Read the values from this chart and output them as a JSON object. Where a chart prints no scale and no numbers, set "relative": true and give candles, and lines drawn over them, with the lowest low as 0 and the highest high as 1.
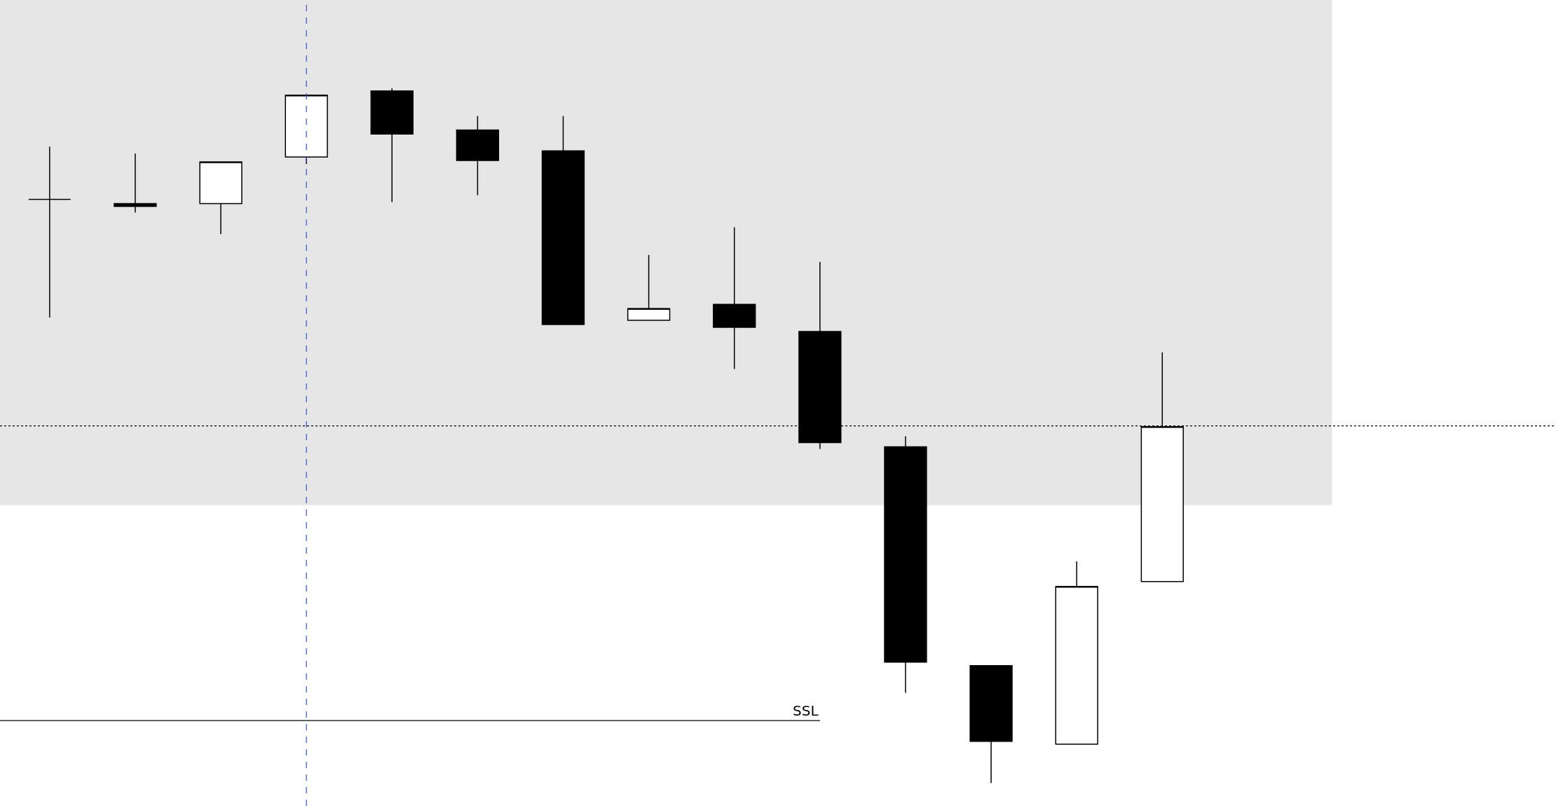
{
  "chart_data": {
    "type": "candlestick",
    "relative": true,
    "categories": [
      null,
      null,
      null,
      null,
      null,
      null,
      null,
      null,
      null,
      null,
      null,
      null,
      null,
      null
    ],
    "ohlc": [
      [
        0.84,
        0.916,
        0.67,
        0.84
      ],
      [
        0.834,
        0.906,
        0.821,
        0.83
      ],
      [
        0.834,
        0.894,
        0.79,
        0.894
      ],
      [
        0.901,
        0.99,
        0.891,
        0.99
      ],
      [
        0.996,
        1.0,
        0.836,
        0.934
      ],
      [
        0.94,
        0.96,
        0.846,
        0.896
      ],
      [
        0.91,
        0.96,
        0.66,
        0.66
      ],
      [
        0.666,
        0.76,
        0.666,
        0.683
      ],
      [
        0.689,
        0.8,
        0.596,
        0.656
      ],
      [
        0.65,
        0.75,
        0.481,
        0.49
      ],
      [
        0.484,
        0.499,
        0.13,
        0.174
      ],
      [
        0.169,
        0.169,
        0.0,
        0.06
      ],
      [
        0.056,
        0.319,
        0.056,
        0.283
      ],
      [
        0.29,
        0.62,
        0.29,
        0.513
      ]
    ],
    "bands": [
      {
        "axis": "y",
        "from": 0.4,
        "to": 1.127,
        "color": "#e6e6e6"
      }
    ],
    "ref_lines": [
      {
        "axis": "y",
        "value": 0.514,
        "line_style": "dotted",
        "color": "#000000"
      },
      {
        "axis": "y",
        "value": 0.09,
        "label": "SSL",
        "line_style": "solid",
        "color": "#000000"
      }
    ],
    "grid": false,
    "legend": false,
    "tick_labels": false
  }
}
